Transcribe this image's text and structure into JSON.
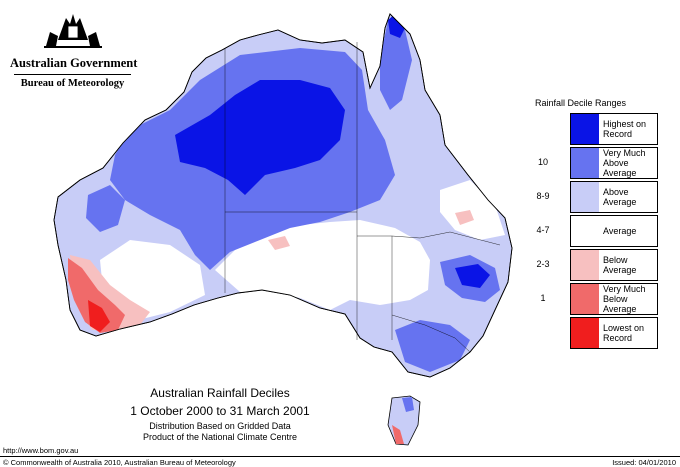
{
  "header": {
    "government": "Australian Government",
    "bureau": "Bureau of Meteorology"
  },
  "map": {
    "subject": "Australia",
    "colors": {
      "highest": "#0a14e6",
      "very_much_above": "#6673f0",
      "above": "#c8cdf7",
      "average": "#ffffff",
      "below": "#f7c0c0",
      "very_much_below": "#f06a6a",
      "lowest": "#f01e1e"
    }
  },
  "legend": {
    "title": "Rainfall Decile Ranges",
    "entries": [
      {
        "code": "",
        "label": "Highest on Record",
        "color": "#0a14e6"
      },
      {
        "code": "10",
        "label": "Very Much Above Average",
        "color": "#6673f0"
      },
      {
        "code": "8-9",
        "label": "Above Average",
        "color": "#c8cdf7"
      },
      {
        "code": "4-7",
        "label": "Average",
        "color": "#ffffff"
      },
      {
        "code": "2-3",
        "label": "Below Average",
        "color": "#f7c0c0"
      },
      {
        "code": "1",
        "label": "Very Much Below Average",
        "color": "#f06a6a"
      },
      {
        "code": "",
        "label": "Lowest on Record",
        "color": "#f01e1e"
      }
    ]
  },
  "caption": {
    "title": "Australian Rainfall Deciles",
    "dates": "1 October 2000 to 31 March 2001",
    "line1": "Distribution Based on Gridded Data",
    "line2": "Product of the National Climate Centre"
  },
  "footer": {
    "url": "http://www.bom.gov.au",
    "copyright": "© Commonwealth of Australia 2010, Australian Bureau of Meteorology",
    "issued": "Issued: 04/01/2010"
  }
}
